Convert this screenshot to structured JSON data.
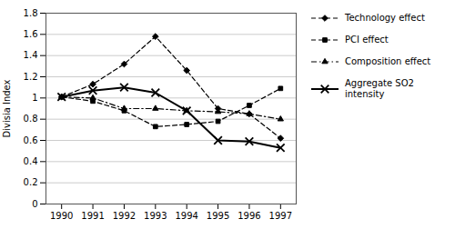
{
  "chart_data": {
    "type": "line",
    "x": [
      1990,
      1991,
      1992,
      1993,
      1994,
      1995,
      1996,
      1997
    ],
    "series": [
      {
        "name": "Technology effect",
        "color": "#000000",
        "marker": "diamond",
        "line_style": "dashed",
        "values": [
          1.01,
          1.13,
          1.32,
          1.58,
          1.26,
          0.9,
          0.85,
          0.62
        ]
      },
      {
        "name": "PCI effect",
        "color": "#000000",
        "marker": "square",
        "line_style": "dashed",
        "values": [
          1.01,
          0.97,
          0.88,
          0.73,
          0.75,
          0.78,
          0.93,
          1.09
        ]
      },
      {
        "name": "Composition effect",
        "color": "#000000",
        "marker": "triangle",
        "line_style": "dashdot",
        "values": [
          1.01,
          1.0,
          0.9,
          0.9,
          0.88,
          0.87,
          0.85,
          0.8
        ]
      },
      {
        "name": "Aggregate SO2\nintensity",
        "color": "#000000",
        "marker": "x",
        "line_style": "solid",
        "values": [
          1.01,
          1.07,
          1.1,
          1.05,
          0.88,
          0.6,
          0.59,
          0.53
        ]
      }
    ],
    "ylabel": "Divisia Index",
    "xlim": [
      1989.5,
      1997.5
    ],
    "xticks": [
      1990,
      1991,
      1992,
      1993,
      1994,
      1995,
      1996,
      1997
    ],
    "ylim": [
      0,
      1.8
    ],
    "yticks": [
      0,
      0.2,
      0.4,
      0.6,
      0.8,
      1,
      1.2,
      1.4,
      1.6,
      1.8
    ],
    "grid": true,
    "legend": "right"
  }
}
